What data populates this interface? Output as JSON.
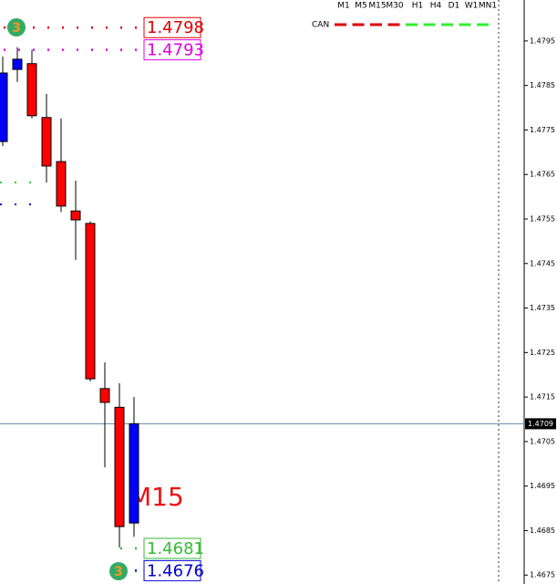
{
  "chart_data": {
    "type": "candlestick",
    "candles": {
      "open": [
        1.47724,
        1.47886,
        1.47899,
        1.47778,
        1.47679,
        1.47568,
        1.4754,
        1.47169,
        1.47127,
        1.46867
      ],
      "high": [
        1.47915,
        1.47936,
        1.4793,
        1.47831,
        1.47776,
        1.47636,
        1.47545,
        1.47228,
        1.47181,
        1.4715
      ],
      "low": [
        1.47714,
        1.47858,
        1.47776,
        1.47632,
        1.47566,
        1.47458,
        1.47185,
        1.46992,
        1.46812,
        1.46836
      ],
      "close": [
        1.47878,
        1.47909,
        1.47782,
        1.47669,
        1.47579,
        1.47548,
        1.47191,
        1.47138,
        1.46859,
        1.4709
      ]
    },
    "bull_color": "#0000ff",
    "bear_color": "#ff0000",
    "ylim": [
      1.4673,
      1.48042
    ],
    "yticks": [
      1.4795,
      1.4785,
      1.4775,
      1.4765,
      1.4755,
      1.4745,
      1.4735,
      1.4725,
      1.4715,
      1.4705,
      1.4695,
      1.4685,
      1.4675
    ],
    "current_price": 1.4709,
    "levels": [
      {
        "value": 1.4798,
        "color": "#e00000"
      },
      {
        "value": 1.4793,
        "color": "#e000e0"
      },
      {
        "value": 1.4681,
        "color": "#33bb33"
      },
      {
        "value": 1.4676,
        "color": "#0000cc"
      }
    ],
    "markers": [
      "3",
      "3"
    ],
    "timeframe_title": "M15",
    "legend_label": "CAN",
    "timeframes": [
      {
        "label": "M1",
        "color": "#dd0000"
      },
      {
        "label": "M5",
        "color": "#dd0000"
      },
      {
        "label": "M15",
        "color": "#dd0000"
      },
      {
        "label": "M30",
        "color": "#dd0000"
      },
      {
        "label": "H1",
        "color": "#33ee33"
      },
      {
        "label": "H4",
        "color": "#33ee33"
      },
      {
        "label": "D1",
        "color": "#33ee33"
      },
      {
        "label": "W1",
        "color": "#33ee33"
      },
      {
        "label": "MN1",
        "color": "#33ee33"
      }
    ]
  }
}
